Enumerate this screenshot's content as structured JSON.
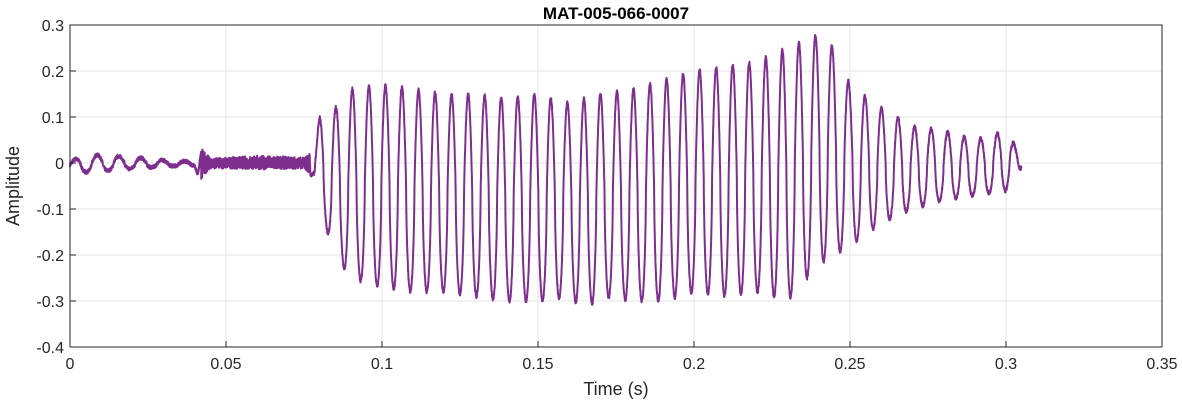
{
  "chart_data": {
    "type": "line",
    "title": "MAT-005-066-0007",
    "xlabel": "Time (s)",
    "ylabel": "Amplitude",
    "xlim": [
      0,
      0.35
    ],
    "ylim": [
      -0.4,
      0.3
    ],
    "xticks": [
      0,
      0.05,
      0.1,
      0.15,
      0.2,
      0.25,
      0.3,
      0.35
    ],
    "xtick_labels": [
      "0",
      "0.05",
      "0.1",
      "0.15",
      "0.2",
      "0.25",
      "0.3",
      "0.35"
    ],
    "yticks": [
      -0.4,
      -0.3,
      -0.2,
      -0.1,
      0,
      0.1,
      0.2,
      0.3
    ],
    "ytick_labels": [
      "-0.4",
      "-0.3",
      "-0.2",
      "-0.1",
      "0",
      "0.1",
      "0.2",
      "0.3"
    ],
    "grid": true,
    "legend": "none",
    "series": [
      {
        "color": "#7E2F8E",
        "x": [
          0,
          0.005,
          0.01,
          0.015,
          0.02,
          0.025,
          0.03,
          0.035,
          0.04,
          0.041,
          0.042,
          0.045,
          0.05,
          0.055,
          0.06,
          0.065,
          0.07,
          0.075,
          0.078,
          0.08,
          0.085,
          0.09,
          0.1,
          0.11,
          0.12,
          0.13,
          0.14,
          0.15,
          0.16,
          0.165,
          0.17,
          0.18,
          0.19,
          0.2,
          0.21,
          0.22,
          0.23,
          0.24,
          0.245,
          0.25,
          0.26,
          0.27,
          0.28,
          0.29,
          0.3,
          0.305
        ],
        "upper": [
          0.005,
          0.015,
          0.018,
          0.015,
          0.012,
          0.01,
          0.006,
          0.004,
          0.004,
          0.03,
          0.035,
          0.01,
          0.012,
          0.014,
          0.016,
          0.015,
          0.014,
          0.012,
          0.03,
          0.1,
          0.12,
          0.16,
          0.17,
          0.16,
          0.15,
          0.15,
          0.14,
          0.15,
          0.13,
          0.14,
          0.15,
          0.16,
          0.18,
          0.2,
          0.21,
          0.22,
          0.25,
          0.28,
          0.25,
          0.17,
          0.12,
          0.08,
          0.07,
          0.05,
          0.07,
          0.015
        ],
        "lower": [
          -0.015,
          -0.02,
          -0.018,
          -0.015,
          -0.012,
          -0.01,
          -0.008,
          -0.006,
          -0.006,
          -0.03,
          -0.035,
          -0.012,
          -0.012,
          -0.013,
          -0.014,
          -0.014,
          -0.013,
          -0.012,
          -0.03,
          -0.1,
          -0.2,
          -0.25,
          -0.27,
          -0.28,
          -0.28,
          -0.29,
          -0.3,
          -0.3,
          -0.29,
          -0.32,
          -0.29,
          -0.3,
          -0.3,
          -0.28,
          -0.29,
          -0.28,
          -0.3,
          -0.22,
          -0.2,
          -0.18,
          -0.13,
          -0.1,
          -0.08,
          -0.07,
          -0.06,
          -0.01
        ],
        "cycle_period_s": 0.0053,
        "noise_region_s": [
          0.042,
          0.077
        ]
      }
    ]
  }
}
